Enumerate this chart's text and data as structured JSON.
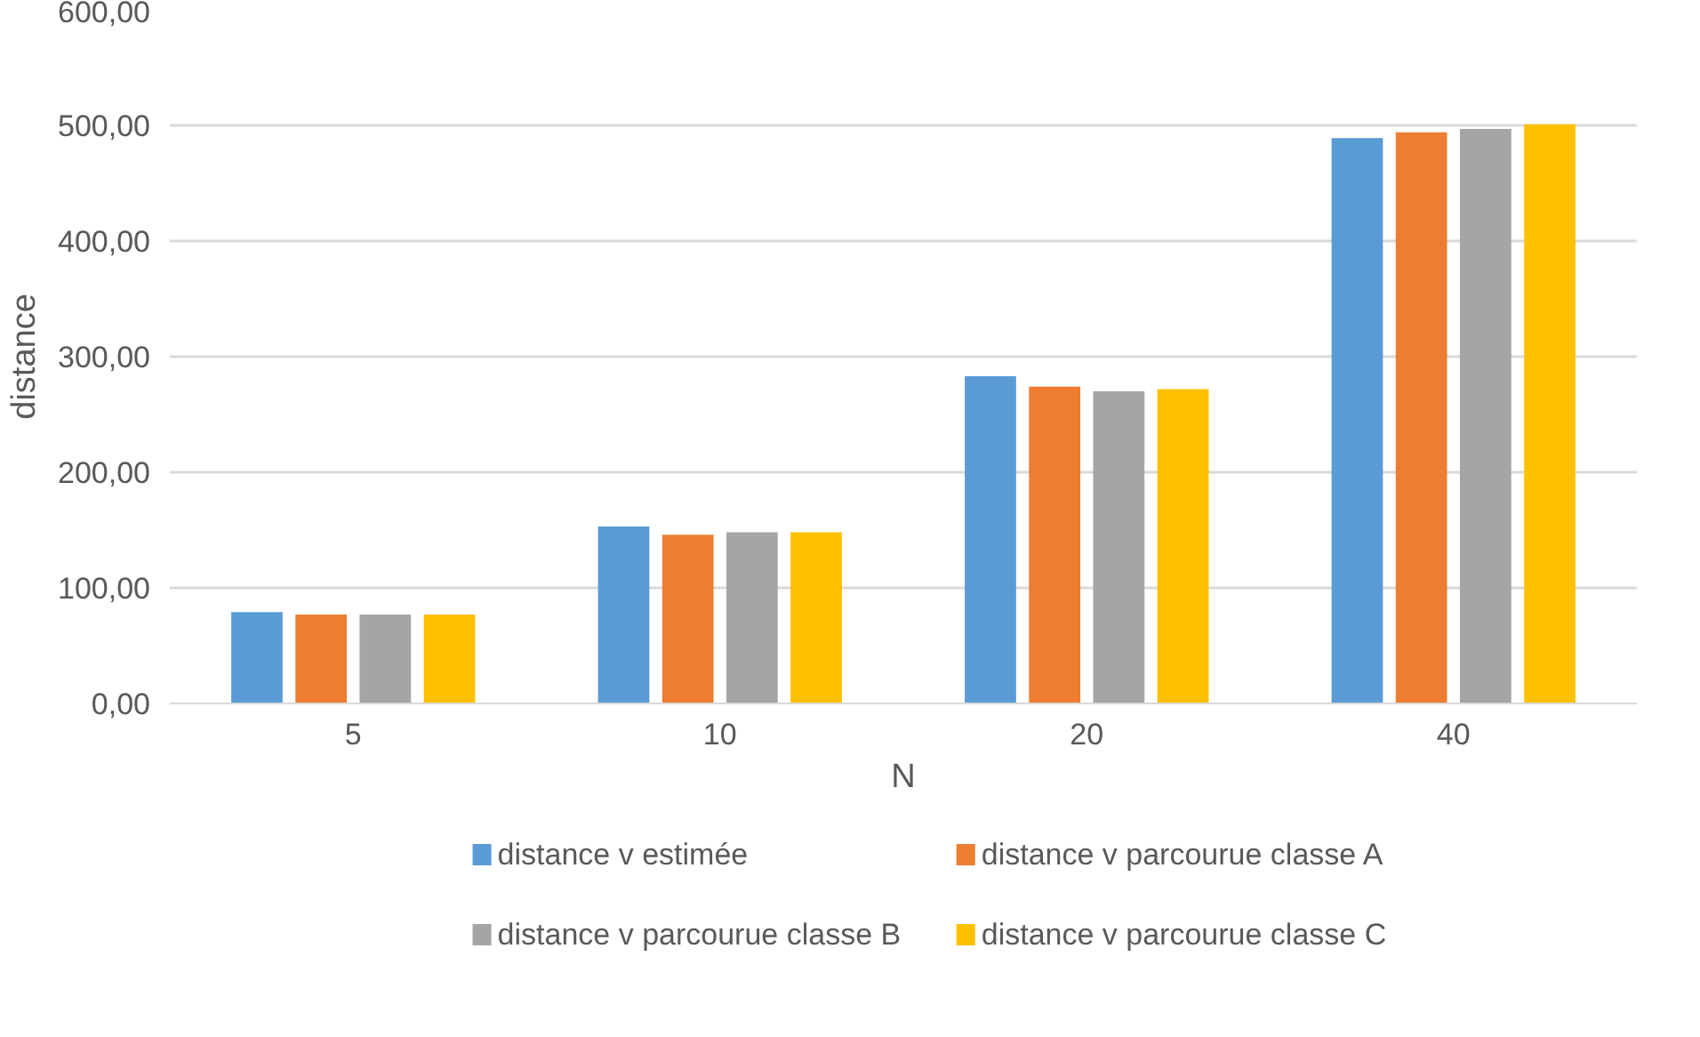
{
  "chart_data": {
    "type": "bar",
    "xlabel": "N",
    "ylabel": "distance",
    "categories": [
      "5",
      "10",
      "20",
      "40"
    ],
    "series": [
      {
        "name": "distance v estimée",
        "color": "#5b9bd5",
        "values": [
          79,
          153,
          283,
          489
        ]
      },
      {
        "name": "distance v parcourue classe A",
        "color": "#ed7d31",
        "values": [
          77,
          146,
          274,
          494
        ]
      },
      {
        "name": "distance v parcourue classe B",
        "color": "#a5a5a5",
        "values": [
          77,
          148,
          270,
          497
        ]
      },
      {
        "name": "distance v parcourue classe C",
        "color": "#ffc000",
        "values": [
          77,
          148,
          272,
          501
        ]
      }
    ],
    "ylim": [
      0,
      600
    ],
    "yticks": [
      {
        "value": 0,
        "label": "0,00"
      },
      {
        "value": 100,
        "label": "100,00"
      },
      {
        "value": 200,
        "label": "200,00"
      },
      {
        "value": 300,
        "label": "300,00"
      },
      {
        "value": 400,
        "label": "400,00"
      },
      {
        "value": 500,
        "label": "500,00"
      },
      {
        "value": 600,
        "label": "600,00"
      }
    ],
    "grid": "y",
    "legend": "bottom"
  }
}
